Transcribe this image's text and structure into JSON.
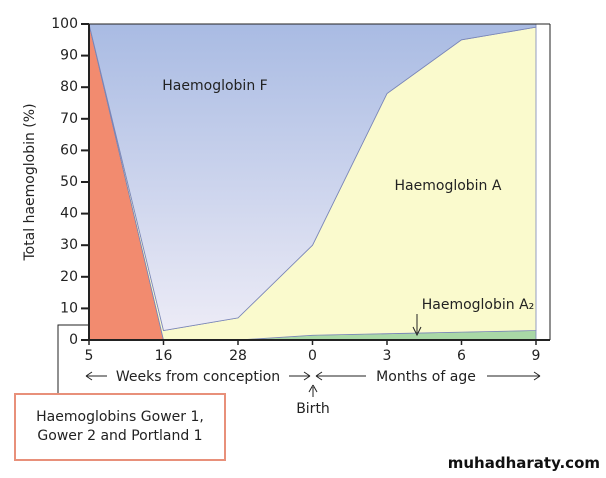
{
  "chart_data": {
    "type": "area",
    "stacked": true,
    "y_label": "Total haemoglobin (%)",
    "categories": [
      "5",
      "16",
      "28",
      "0",
      "3",
      "6",
      "9"
    ],
    "ylim": [
      0,
      100
    ],
    "yticks": [
      0,
      10,
      20,
      30,
      40,
      50,
      60,
      70,
      80,
      90,
      100
    ],
    "series": [
      {
        "name": "Haemoglobins Gower 1, Gower 2 and Portland 1",
        "color": "#f28b6f",
        "values": [
          100,
          0,
          0,
          0,
          0,
          0,
          0
        ]
      },
      {
        "name": "Haemoglobin A₂",
        "color": "#a9d8a6",
        "values": [
          0,
          0,
          0,
          1.5,
          2,
          2.5,
          3
        ]
      },
      {
        "name": "Haemoglobin A",
        "color": "#fafacd",
        "values": [
          0,
          3,
          7,
          28.5,
          76,
          92.5,
          96
        ]
      },
      {
        "name": "Haemoglobin F",
        "color": "#a9bbe3",
        "values": [
          0,
          97,
          93,
          70,
          22,
          5,
          1
        ]
      }
    ],
    "annotations": [
      "Weeks from conception",
      "Months of age",
      "Birth"
    ],
    "watermark": "muhadharaty.com"
  }
}
